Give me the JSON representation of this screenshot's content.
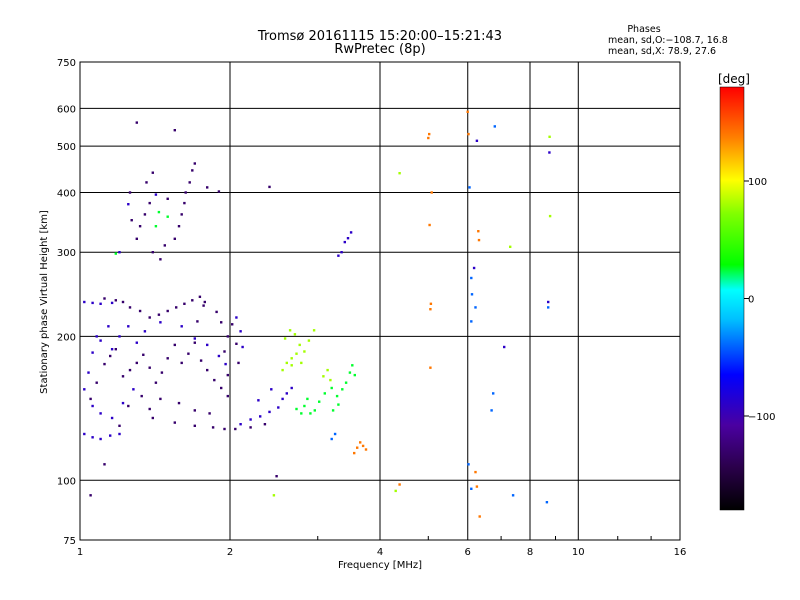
{
  "chart_data": {
    "type": "scatter",
    "title_line1": "Tromsø 20161115 15:20:00–15:21:43",
    "title_line2": "RwPretec (8p)",
    "stats_title": "Phases",
    "stats_line1": "mean, sd,O:−108.7, 16.8",
    "stats_line2": "mean, sd,X:  78.9, 27.6",
    "xlabel": "Frequency [MHz]",
    "ylabel": "Stationary phase Virtual Height [km]",
    "xscale": "log",
    "yscale": "log",
    "xlim": [
      1,
      16
    ],
    "ylim": [
      75,
      750
    ],
    "xticks": [
      1,
      2,
      4,
      6,
      8,
      10,
      16
    ],
    "xtick_labels": [
      "1",
      "2",
      "4",
      "6",
      "8",
      "10",
      "16"
    ],
    "yticks": [
      75,
      100,
      200,
      300,
      400,
      500,
      600,
      750
    ],
    "ytick_labels": [
      "75",
      "100",
      "200",
      "300",
      "400",
      "500",
      "600",
      "750"
    ],
    "grid": true,
    "colorbar": {
      "label": "[deg]",
      "range": [
        -180,
        180
      ],
      "ticks": [
        -100,
        0,
        100
      ],
      "tick_labels": [
        "−100",
        "0",
        "100"
      ]
    },
    "series": [
      {
        "phase_deg": -130,
        "points": [
          [
            1.05,
            148
          ],
          [
            1.08,
            160
          ],
          [
            1.12,
            175
          ],
          [
            1.15,
            182
          ],
          [
            1.18,
            188
          ],
          [
            1.22,
            165
          ],
          [
            1.26,
            170
          ],
          [
            1.3,
            176
          ],
          [
            1.34,
            183
          ],
          [
            1.38,
            172
          ],
          [
            1.42,
            160
          ],
          [
            1.46,
            168
          ],
          [
            1.5,
            180
          ],
          [
            1.55,
            192
          ],
          [
            1.6,
            176
          ],
          [
            1.65,
            184
          ],
          [
            1.7,
            194
          ],
          [
            1.75,
            178
          ],
          [
            1.8,
            170
          ],
          [
            1.86,
            162
          ],
          [
            1.92,
            156
          ],
          [
            1.98,
            150
          ],
          [
            1.33,
            150
          ],
          [
            1.45,
            148
          ],
          [
            1.58,
            145
          ],
          [
            1.7,
            140
          ],
          [
            1.82,
            138
          ],
          [
            1.25,
            143
          ],
          [
            1.38,
            141
          ],
          [
            1.2,
            130
          ],
          [
            1.4,
            135
          ],
          [
            1.55,
            132
          ],
          [
            1.7,
            130
          ],
          [
            1.85,
            129
          ],
          [
            1.95,
            128
          ],
          [
            2.05,
            128
          ],
          [
            2.2,
            129
          ],
          [
            2.35,
            131
          ],
          [
            1.3,
            320
          ],
          [
            1.35,
            360
          ],
          [
            1.38,
            380
          ],
          [
            1.4,
            300
          ],
          [
            1.45,
            290
          ],
          [
            1.48,
            310
          ],
          [
            1.55,
            320
          ],
          [
            1.58,
            340
          ],
          [
            1.6,
            360
          ],
          [
            1.62,
            380
          ],
          [
            1.63,
            400
          ],
          [
            1.66,
            420
          ],
          [
            1.68,
            445
          ],
          [
            1.7,
            460
          ],
          [
            1.12,
            240
          ],
          [
            1.18,
            238
          ],
          [
            1.22,
            236
          ],
          [
            1.26,
            230
          ],
          [
            1.32,
            226
          ],
          [
            1.38,
            219
          ],
          [
            1.44,
            222
          ],
          [
            1.5,
            226
          ],
          [
            1.56,
            230
          ],
          [
            1.62,
            234
          ],
          [
            1.68,
            238
          ],
          [
            1.74,
            242
          ],
          [
            1.78,
            236
          ],
          [
            1.3,
            560
          ],
          [
            1.55,
            540
          ],
          [
            1.12,
            108
          ],
          [
            1.05,
            93
          ],
          [
            2.4,
            411
          ],
          [
            2.48,
            102
          ],
          [
            1.88,
            225
          ],
          [
            1.92,
            214
          ],
          [
            2.02,
            212
          ],
          [
            1.98,
            200
          ],
          [
            2.06,
            193
          ],
          [
            1.72,
            215
          ],
          [
            1.77,
            232
          ],
          [
            1.26,
            400
          ],
          [
            1.36,
            420
          ],
          [
            1.4,
            440
          ],
          [
            1.5,
            388
          ],
          [
            1.27,
            350
          ],
          [
            1.32,
            340
          ],
          [
            1.8,
            410
          ],
          [
            1.9,
            402
          ],
          [
            1.95,
            186
          ],
          [
            2.08,
            176
          ],
          [
            1.98,
            166
          ]
        ]
      },
      {
        "phase_deg": -90,
        "points": [
          [
            1.02,
            155
          ],
          [
            1.04,
            168
          ],
          [
            1.06,
            185
          ],
          [
            1.08,
            200
          ],
          [
            1.1,
            196
          ],
          [
            1.14,
            210
          ],
          [
            1.02,
            125
          ],
          [
            1.06,
            123
          ],
          [
            1.1,
            122
          ],
          [
            1.15,
            124
          ],
          [
            1.2,
            125
          ],
          [
            1.06,
            143
          ],
          [
            1.1,
            138
          ],
          [
            1.16,
            135
          ],
          [
            1.22,
            145
          ],
          [
            1.28,
            155
          ],
          [
            2.1,
            131
          ],
          [
            2.2,
            134
          ],
          [
            2.3,
            136
          ],
          [
            2.4,
            139
          ],
          [
            2.5,
            142
          ],
          [
            2.55,
            148
          ],
          [
            2.6,
            152
          ],
          [
            2.66,
            156
          ],
          [
            1.02,
            236
          ],
          [
            1.06,
            235
          ],
          [
            1.1,
            234
          ],
          [
            1.16,
            235
          ],
          [
            2.06,
            219
          ],
          [
            2.1,
            205
          ],
          [
            2.12,
            190
          ],
          [
            1.2,
            200
          ],
          [
            1.25,
            210
          ],
          [
            1.16,
            188
          ],
          [
            1.3,
            194
          ],
          [
            1.35,
            205
          ],
          [
            1.45,
            214
          ],
          [
            1.6,
            210
          ],
          [
            1.7,
            198
          ],
          [
            1.8,
            192
          ],
          [
            1.9,
            182
          ],
          [
            1.96,
            175
          ],
          [
            3.3,
            295
          ],
          [
            3.35,
            300
          ],
          [
            3.4,
            315
          ],
          [
            3.45,
            321
          ],
          [
            3.5,
            330
          ],
          [
            1.42,
            396
          ],
          [
            1.25,
            378
          ],
          [
            1.2,
            300
          ],
          [
            6.18,
            278
          ],
          [
            6.26,
            513
          ],
          [
            7.1,
            190
          ],
          [
            8.7,
            236
          ],
          [
            8.75,
            485
          ],
          [
            2.42,
            155
          ],
          [
            2.28,
            147
          ]
        ]
      },
      {
        "phase_deg": -40,
        "points": [
          [
            3.2,
            122
          ],
          [
            3.25,
            125
          ],
          [
            6.12,
            245
          ],
          [
            6.1,
            215
          ],
          [
            6.05,
            410
          ],
          [
            6.1,
            265
          ],
          [
            6.22,
            230
          ],
          [
            6.8,
            550
          ],
          [
            6.7,
            140
          ],
          [
            6.75,
            152
          ],
          [
            6.1,
            96
          ],
          [
            6.02,
            108
          ],
          [
            8.7,
            230
          ],
          [
            8.65,
            90
          ],
          [
            7.4,
            93
          ]
        ]
      },
      {
        "phase_deg": 25,
        "points": [
          [
            2.72,
            141
          ],
          [
            2.82,
            143
          ],
          [
            2.9,
            138
          ],
          [
            2.96,
            140
          ],
          [
            3.02,
            146
          ],
          [
            3.1,
            152
          ],
          [
            3.2,
            156
          ],
          [
            3.28,
            150
          ],
          [
            3.36,
            155
          ],
          [
            3.42,
            160
          ],
          [
            3.48,
            168
          ],
          [
            3.52,
            174
          ],
          [
            3.56,
            166
          ],
          [
            3.3,
            144
          ],
          [
            3.22,
            140
          ],
          [
            2.86,
            148
          ],
          [
            2.78,
            138
          ],
          [
            1.18,
            298
          ],
          [
            1.42,
            340
          ],
          [
            1.5,
            356
          ],
          [
            1.44,
            364
          ]
        ]
      },
      {
        "phase_deg": 80,
        "points": [
          [
            2.58,
            198
          ],
          [
            2.64,
            206
          ],
          [
            2.7,
            202
          ],
          [
            2.76,
            192
          ],
          [
            2.82,
            186
          ],
          [
            2.88,
            196
          ],
          [
            2.95,
            206
          ],
          [
            2.72,
            184
          ],
          [
            2.66,
            180
          ],
          [
            2.6,
            176
          ],
          [
            2.55,
            170
          ],
          [
            2.66,
            174
          ],
          [
            2.78,
            176
          ],
          [
            3.08,
            165
          ],
          [
            3.14,
            170
          ],
          [
            3.18,
            162
          ],
          [
            4.38,
            439
          ],
          [
            7.3,
            308
          ],
          [
            8.78,
            357
          ],
          [
            4.3,
            95
          ],
          [
            2.45,
            93
          ],
          [
            8.76,
            523
          ]
        ]
      },
      {
        "phase_deg": 140,
        "points": [
          [
            3.6,
            117
          ],
          [
            3.65,
            120
          ],
          [
            3.7,
            118
          ],
          [
            3.55,
            114
          ],
          [
            3.75,
            116
          ],
          [
            5.02,
            530
          ],
          [
            5.0,
            520
          ],
          [
            5.08,
            400
          ],
          [
            6.0,
            590
          ],
          [
            6.02,
            530
          ],
          [
            6.3,
            332
          ],
          [
            6.32,
            318
          ],
          [
            5.03,
            342
          ],
          [
            5.06,
            234
          ],
          [
            5.05,
            228
          ],
          [
            5.05,
            172
          ],
          [
            6.22,
            104
          ],
          [
            6.26,
            97
          ],
          [
            6.34,
            84
          ],
          [
            4.38,
            98
          ]
        ]
      }
    ]
  }
}
